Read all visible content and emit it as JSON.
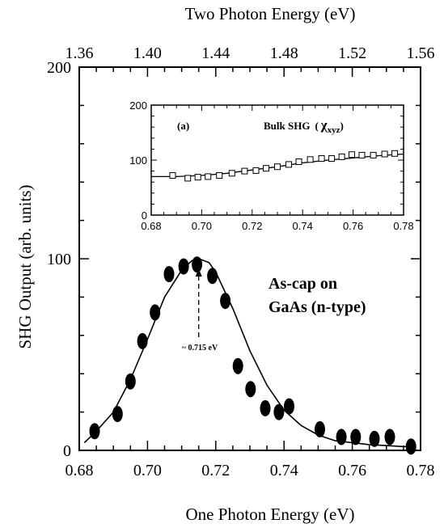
{
  "chart_data": [
    {
      "type": "scatter",
      "xlabel": "One Photon Energy (eV)",
      "x2label": "Two Photon Energy (eV)",
      "ylabel": "SHG Output (arb. units)",
      "xlim": [
        0.68,
        0.78
      ],
      "ylim": [
        0,
        200
      ],
      "x_ticks": [
        "0.68",
        "0.70",
        "0.72",
        "0.74",
        "0.76",
        "0.78"
      ],
      "x2_ticks": [
        "1.36",
        "1.40",
        "1.44",
        "1.48",
        "1.52",
        "1.56"
      ],
      "y_ticks": [
        "0",
        "100",
        "200"
      ],
      "annotation": [
        "As-cap on",
        "GaAs (n-type)"
      ],
      "peak_label": "~ 0.715 eV",
      "peak_x": 0.715,
      "series": [
        {
          "style": "filled-ellipse",
          "x": [
            0.6845,
            0.6912,
            0.695,
            0.6985,
            0.7022,
            0.7063,
            0.7106,
            0.7145,
            0.719,
            0.7228,
            0.7265,
            0.7302,
            0.7345,
            0.7385,
            0.7415,
            0.7505,
            0.7568,
            0.761,
            0.7665,
            0.771,
            0.7772
          ],
          "y": [
            10,
            19,
            36,
            57,
            72,
            92,
            96,
            97,
            91,
            78,
            44,
            32,
            22,
            20,
            23,
            11,
            7,
            7,
            6,
            7,
            2
          ]
        },
        {
          "style": "fit-curve",
          "x": [
            0.6815,
            0.685,
            0.69,
            0.695,
            0.7,
            0.705,
            0.71,
            0.713,
            0.715,
            0.718,
            0.72,
            0.725,
            0.73,
            0.735,
            0.74,
            0.745,
            0.75,
            0.755,
            0.76,
            0.765,
            0.77,
            0.775,
            0.7775
          ],
          "y": [
            4,
            10,
            20,
            37,
            58,
            80,
            94,
            99,
            100,
            98,
            93,
            74,
            52,
            34,
            21,
            13,
            8,
            5,
            4,
            3,
            2.5,
            2,
            2
          ]
        }
      ]
    },
    {
      "type": "scatter",
      "title": "(a)",
      "label": "Bulk SHG",
      "chi": "χ",
      "chi_sub": "xyz",
      "xlim": [
        0.68,
        0.78
      ],
      "ylim": [
        0,
        200
      ],
      "x_ticks": [
        "0.68",
        "0.70",
        "0.72",
        "0.74",
        "0.76",
        "0.78"
      ],
      "y_ticks": [
        "0",
        "100",
        "200"
      ],
      "series": [
        {
          "style": "open-square",
          "x": [
            0.6885,
            0.6945,
            0.6985,
            0.7025,
            0.707,
            0.712,
            0.717,
            0.7215,
            0.7255,
            0.73,
            0.7345,
            0.7385,
            0.743,
            0.7475,
            0.7515,
            0.7555,
            0.7595,
            0.7635,
            0.768,
            0.7725,
            0.7765
          ],
          "y": [
            72,
            67,
            69,
            70,
            72,
            76,
            80,
            81,
            85,
            88,
            92,
            97,
            101,
            103,
            103,
            106,
            110,
            109,
            109,
            111,
            112
          ]
        },
        {
          "style": "fit-line",
          "x": [
            0.68,
            0.69,
            0.7,
            0.71,
            0.72,
            0.73,
            0.74,
            0.75,
            0.76,
            0.77,
            0.78
          ],
          "y": [
            70,
            70,
            72,
            76,
            82,
            88,
            95,
            100,
            104,
            108,
            111
          ]
        }
      ]
    }
  ]
}
